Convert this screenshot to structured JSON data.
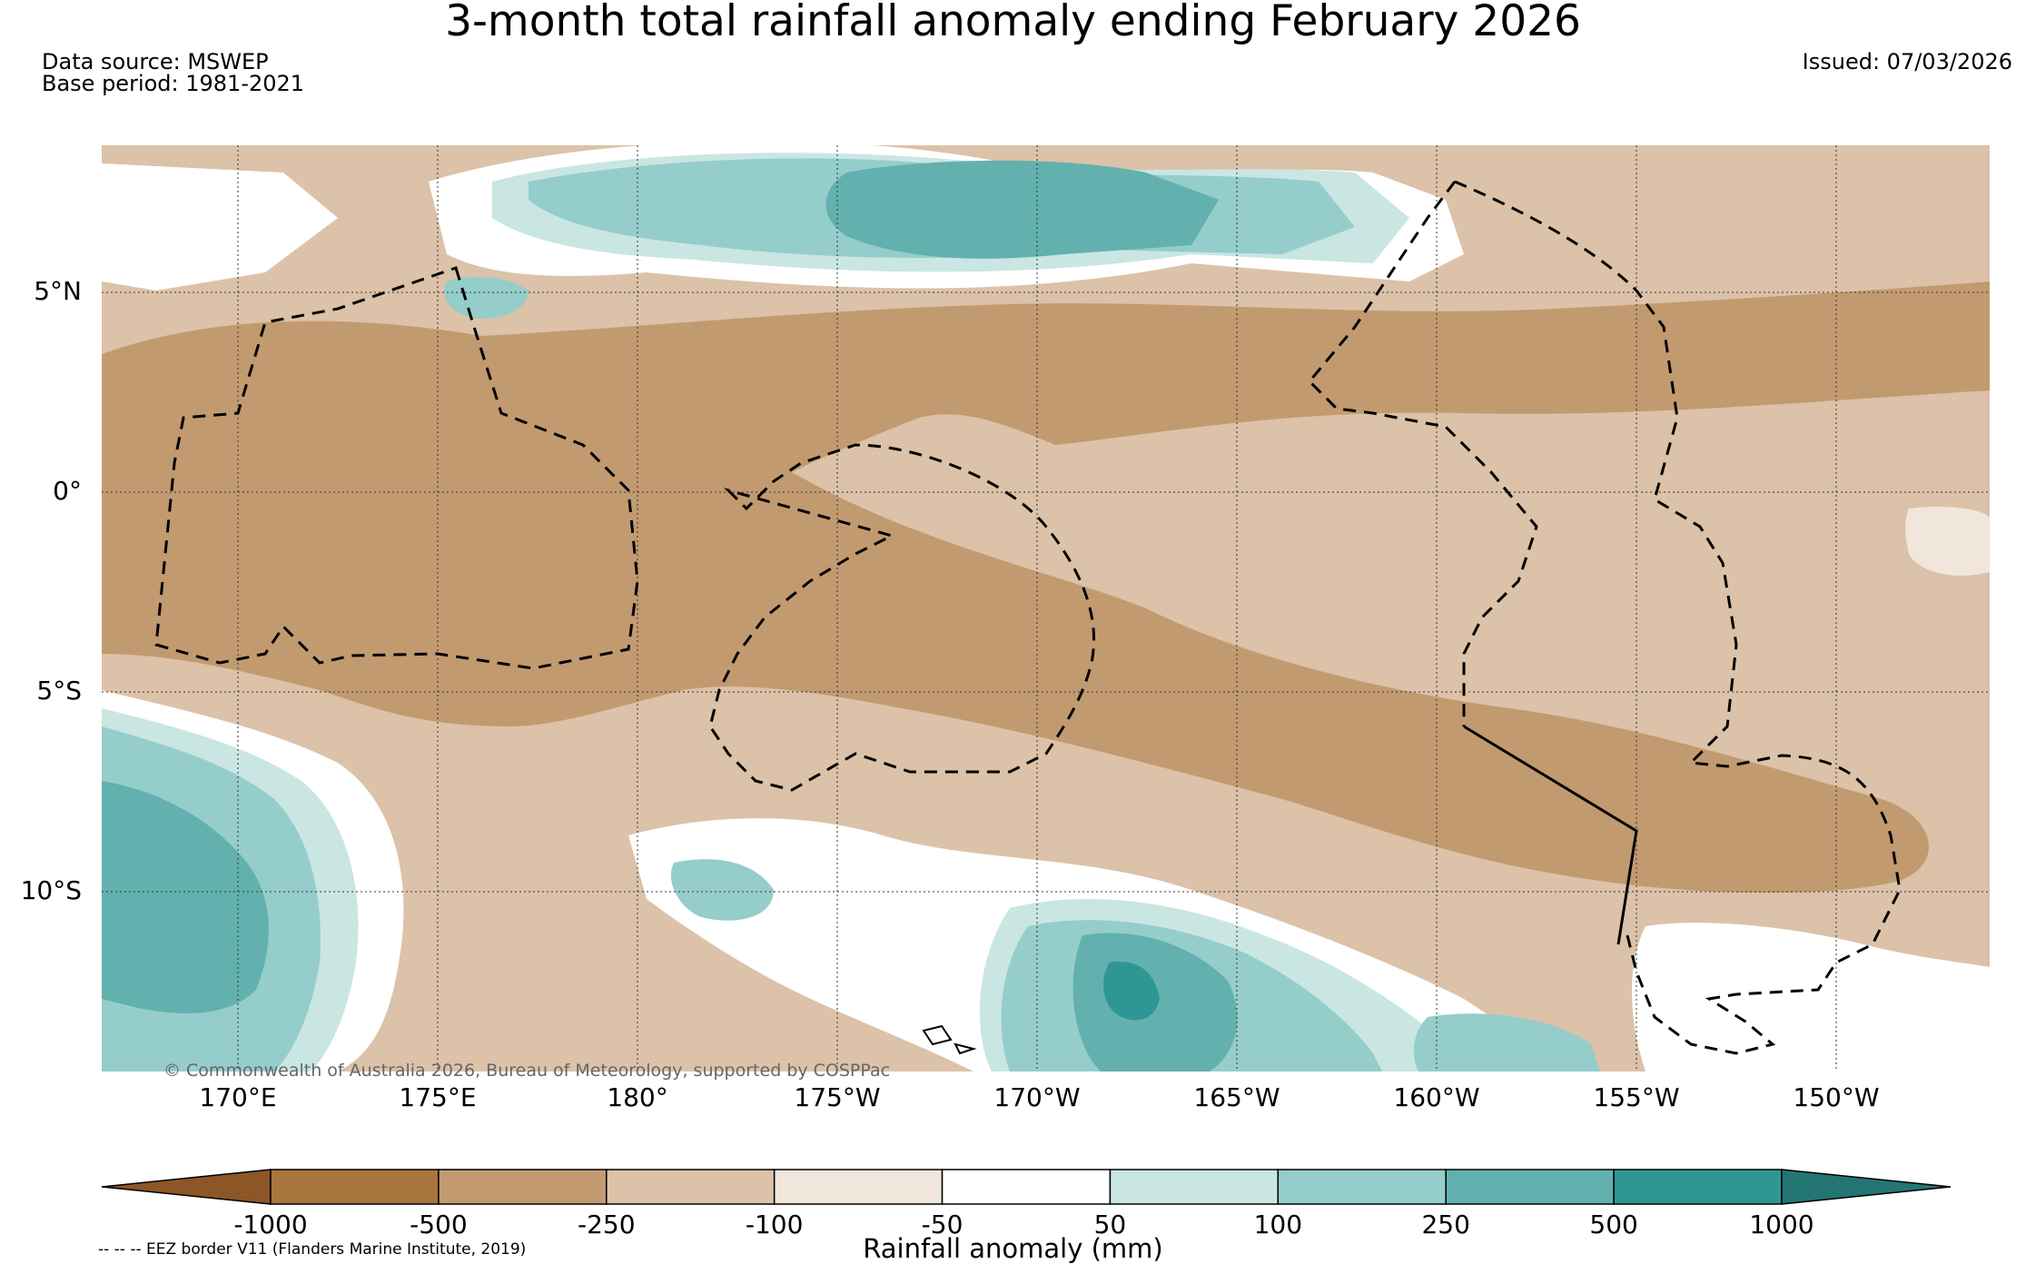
{
  "title": "3-month total rainfall anomaly ending February 2026",
  "data_source": "Data source: MSWEP",
  "base_period": "Base period: 1981-2021",
  "issued": "Issued: 07/03/2026",
  "copyright": "© Commonwealth of Australia 2026, Bureau of Meteorology, supported by COSPPac",
  "eez_note": "-- -- -- EEZ border V11 (Flanders Marine Institute, 2019)",
  "map": {
    "lat_labels": [
      "5°N",
      "0°",
      "5°S",
      "10°S"
    ],
    "lon_labels": [
      "170°E",
      "175°E",
      "180°",
      "175°W",
      "170°W",
      "165°W",
      "160°W",
      "155°W",
      "150°W"
    ]
  },
  "colorbar": {
    "title": "Rainfall anomaly (mm)",
    "ticks": [
      "-1000",
      "-500",
      "-250",
      "-100",
      "-50",
      "50",
      "100",
      "250",
      "500",
      "1000"
    ],
    "colors": [
      "#8c5626",
      "#a8753f",
      "#c29a70",
      "#dbc2a8",
      "#f0e6dc",
      "#ffffff",
      "#c9e6e3",
      "#95cdca",
      "#62b1ae",
      "#2f9793",
      "#237672"
    ]
  }
}
